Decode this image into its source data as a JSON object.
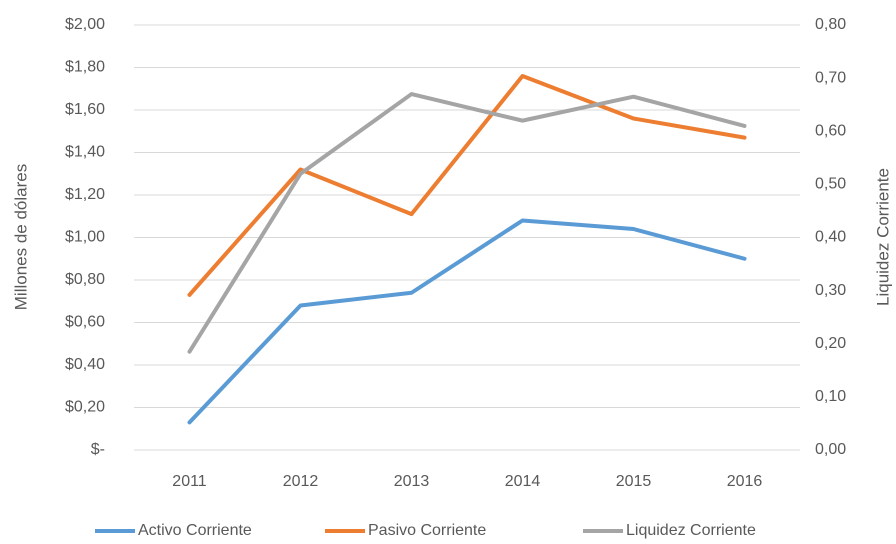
{
  "chart_data": {
    "type": "line",
    "categories": [
      "2011",
      "2012",
      "2013",
      "2014",
      "2015",
      "2016"
    ],
    "y_label": "Millones de dólares",
    "y2_label": "Liquidez Corriente",
    "ylim": [
      0,
      2
    ],
    "yticks": [
      {
        "value": 0,
        "label": "$-"
      },
      {
        "value": 0.2,
        "label": "$0,20"
      },
      {
        "value": 0.4,
        "label": "$0,40"
      },
      {
        "value": 0.6,
        "label": "$0,60"
      },
      {
        "value": 0.8,
        "label": "$0,80"
      },
      {
        "value": 1.0,
        "label": "$1,00"
      },
      {
        "value": 1.2,
        "label": "$1,20"
      },
      {
        "value": 1.4,
        "label": "$1,40"
      },
      {
        "value": 1.6,
        "label": "$1,60"
      },
      {
        "value": 1.8,
        "label": "$1,80"
      },
      {
        "value": 2.0,
        "label": "$2,00"
      }
    ],
    "y2lim": [
      0,
      0.8
    ],
    "y2ticks": [
      {
        "value": 0,
        "label": "0,00"
      },
      {
        "value": 0.1,
        "label": "0,10"
      },
      {
        "value": 0.2,
        "label": "0,20"
      },
      {
        "value": 0.3,
        "label": "0,30"
      },
      {
        "value": 0.4,
        "label": "0,40"
      },
      {
        "value": 0.5,
        "label": "0,50"
      },
      {
        "value": 0.6,
        "label": "0,60"
      },
      {
        "value": 0.7,
        "label": "0,70"
      },
      {
        "value": 0.8,
        "label": "0,80"
      }
    ],
    "grid": true,
    "legend": "bottom",
    "series": [
      {
        "name": "Activo Corriente",
        "color": "#5b9bd5",
        "values": [
          0.13,
          0.68,
          0.74,
          1.08,
          1.04,
          0.9
        ]
      },
      {
        "name": "Pasivo Corriente",
        "color": "#ed7d31",
        "values": [
          0.73,
          1.32,
          1.11,
          1.76,
          1.56,
          1.47
        ]
      },
      {
        "name": "Liquidez Corriente",
        "color": "#a5a5a5",
        "values": [
          0.185,
          0.52,
          0.67,
          0.62,
          0.665,
          0.61
        ],
        "axis": "y2"
      }
    ]
  }
}
